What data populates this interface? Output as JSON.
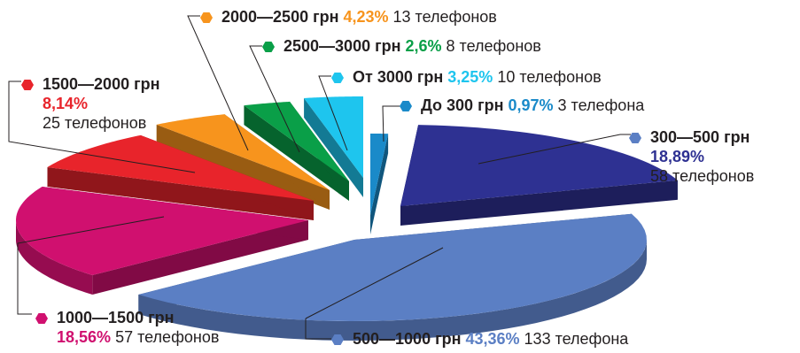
{
  "chart_data": {
    "type": "pie",
    "title": "",
    "unit_label": "телефонов",
    "slices": [
      {
        "range": "До 300 грн",
        "percent": 0.97,
        "percent_label": "0,97%",
        "count_label": "3 телефона",
        "color": "#1a8ac9",
        "pct_color": "#1a8ac9"
      },
      {
        "range": "300—500 грн",
        "percent": 18.89,
        "percent_label": "18,89%",
        "count_label": "58 телефонов",
        "color": "#2e3192",
        "pct_color": "#2e3192"
      },
      {
        "range": "500—1000 грн",
        "percent": 43.36,
        "percent_label": "43,36%",
        "count_label": "133 телефона",
        "color": "#5b7fc4",
        "pct_color": "#5b7fc4"
      },
      {
        "range": "1000—1500 грн",
        "percent": 18.56,
        "percent_label": "18,56%",
        "count_label": "57 телефонов",
        "color": "#d0106f",
        "pct_color": "#d0106f"
      },
      {
        "range": "1500—2000 грн",
        "percent": 8.14,
        "percent_label": "8,14%",
        "count_label": "25 телефонов",
        "color": "#e8242b",
        "pct_color": "#e8242b"
      },
      {
        "range": "2000—2500 грн",
        "percent": 4.23,
        "percent_label": "4,23%",
        "count_label": "13 телефонов",
        "color": "#f7941d",
        "pct_color": "#f7941d"
      },
      {
        "range": "2500—3000 грн",
        "percent": 2.6,
        "percent_label": "2,6%",
        "count_label": "8 телефонов",
        "color": "#0a9f48",
        "pct_color": "#0a9f48"
      },
      {
        "range": "От 3000 грн",
        "percent": 3.25,
        "percent_label": "3,25%",
        "count_label": "10 телефонов",
        "color": "#1ec5ee",
        "pct_color": "#1ec5ee"
      }
    ]
  }
}
